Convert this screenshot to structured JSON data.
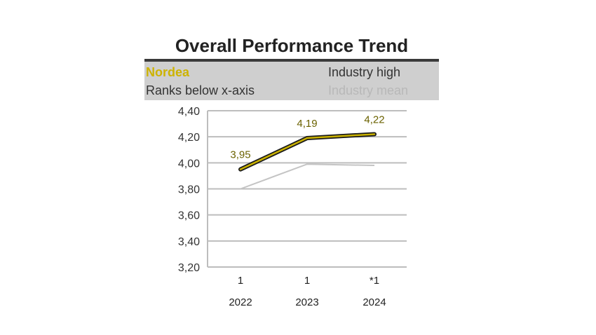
{
  "chart_data": {
    "type": "line",
    "title": "Overall Performance Trend",
    "categories": [
      "2022",
      "2023",
      "2024"
    ],
    "ranks": [
      "1",
      "1",
      "*1"
    ],
    "legend": {
      "nordea": "Nordea",
      "industry_high": "Industry high",
      "ranks_note": "Ranks below x-axis",
      "industry_mean": "Industry mean"
    },
    "series": [
      {
        "name": "Nordea",
        "values": [
          3.95,
          4.19,
          4.22
        ],
        "labels": [
          "3,95",
          "4,19",
          "4,22"
        ]
      },
      {
        "name": "Industry mean",
        "values": [
          3.8,
          3.99,
          3.98
        ]
      }
    ],
    "y_ticks": [
      {
        "value": 3.2,
        "label": "3,20"
      },
      {
        "value": 3.4,
        "label": "3,40"
      },
      {
        "value": 3.6,
        "label": "3,60"
      },
      {
        "value": 3.8,
        "label": "3,80"
      },
      {
        "value": 4.0,
        "label": "4,00"
      },
      {
        "value": 4.2,
        "label": "4,20"
      },
      {
        "value": 4.4,
        "label": "4,40"
      }
    ],
    "ylim": [
      3.2,
      4.4
    ],
    "grid": true,
    "colors": {
      "nordea_line": "#c9b100",
      "nordea_outline": "#1a1a1a",
      "nordea_label": "#6b6200",
      "mean_line": "#c4c4c4",
      "grid": "#bdbdbd"
    }
  }
}
